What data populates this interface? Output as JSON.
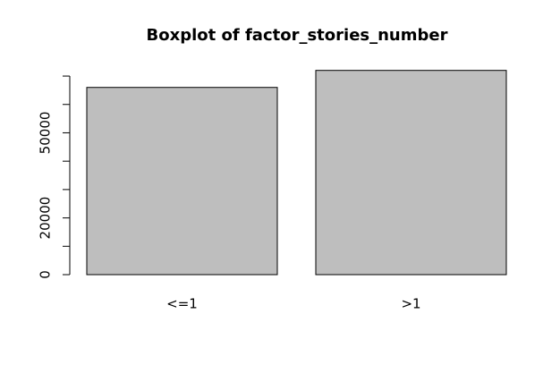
{
  "chart_data": {
    "type": "bar",
    "title": "Boxplot of factor_stories_number",
    "categories": [
      "<=1",
      ">1"
    ],
    "values": [
      66000,
      72000
    ],
    "color": "#bebebe",
    "ylim": [
      0,
      72000
    ],
    "yticks": [
      0,
      20000,
      50000
    ],
    "yticks_minor": [
      10000,
      30000,
      40000,
      60000,
      70000
    ]
  }
}
